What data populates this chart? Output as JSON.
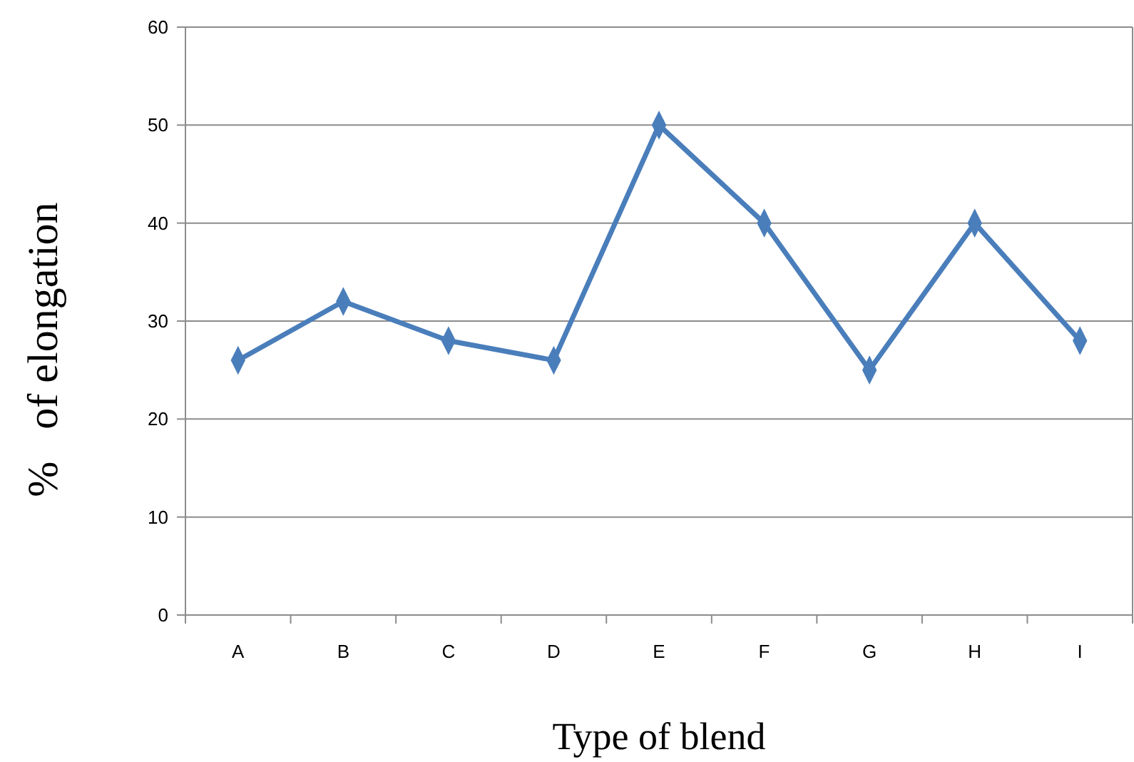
{
  "chart_data": {
    "type": "line",
    "xlabel": "Type of blend",
    "ylabel": "%   of elongation",
    "categories": [
      "A",
      "B",
      "C",
      "D",
      "E",
      "F",
      "G",
      "H",
      "I"
    ],
    "series": [
      {
        "color": "#4a7ebb",
        "values": [
          26,
          32,
          28,
          26,
          50,
          40,
          25,
          40,
          28
        ]
      }
    ],
    "ylim": [
      0,
      60
    ],
    "yticks": [
      0,
      10,
      20,
      30,
      40,
      50,
      60
    ],
    "grid": "y",
    "marker": "diamond",
    "line_style": "solid"
  }
}
